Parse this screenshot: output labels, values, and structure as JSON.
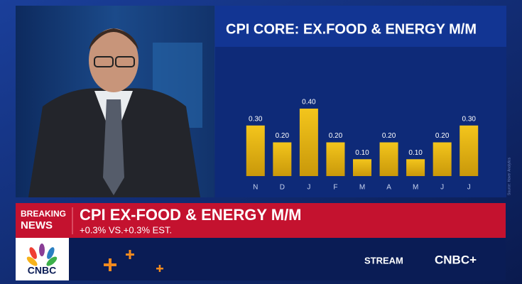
{
  "chart_data": {
    "type": "bar",
    "title": "CPI CORE: EX.FOOD & ENERGY M/M",
    "categories": [
      "N",
      "D",
      "J",
      "F",
      "M",
      "A",
      "M",
      "J",
      "J"
    ],
    "values": [
      0.3,
      0.2,
      0.4,
      0.2,
      0.1,
      0.2,
      0.1,
      0.2,
      0.3
    ],
    "value_labels": [
      "0.30",
      "0.20",
      "0.40",
      "0.20",
      "0.10",
      "0.20",
      "0.10",
      "0.20",
      "0.30"
    ],
    "color": "#e6b412",
    "source": "Source: Haver Analytics"
  },
  "banner": {
    "label_lines": [
      "BREAKING",
      "NEWS"
    ],
    "headline": "CPI EX-FOOD & ENERGY M/M",
    "subline": "+0.3% VS.+0.3% EST."
  },
  "footer": {
    "logo": "CNBC",
    "stream": "STREAM",
    "brand": "CNBC+"
  }
}
